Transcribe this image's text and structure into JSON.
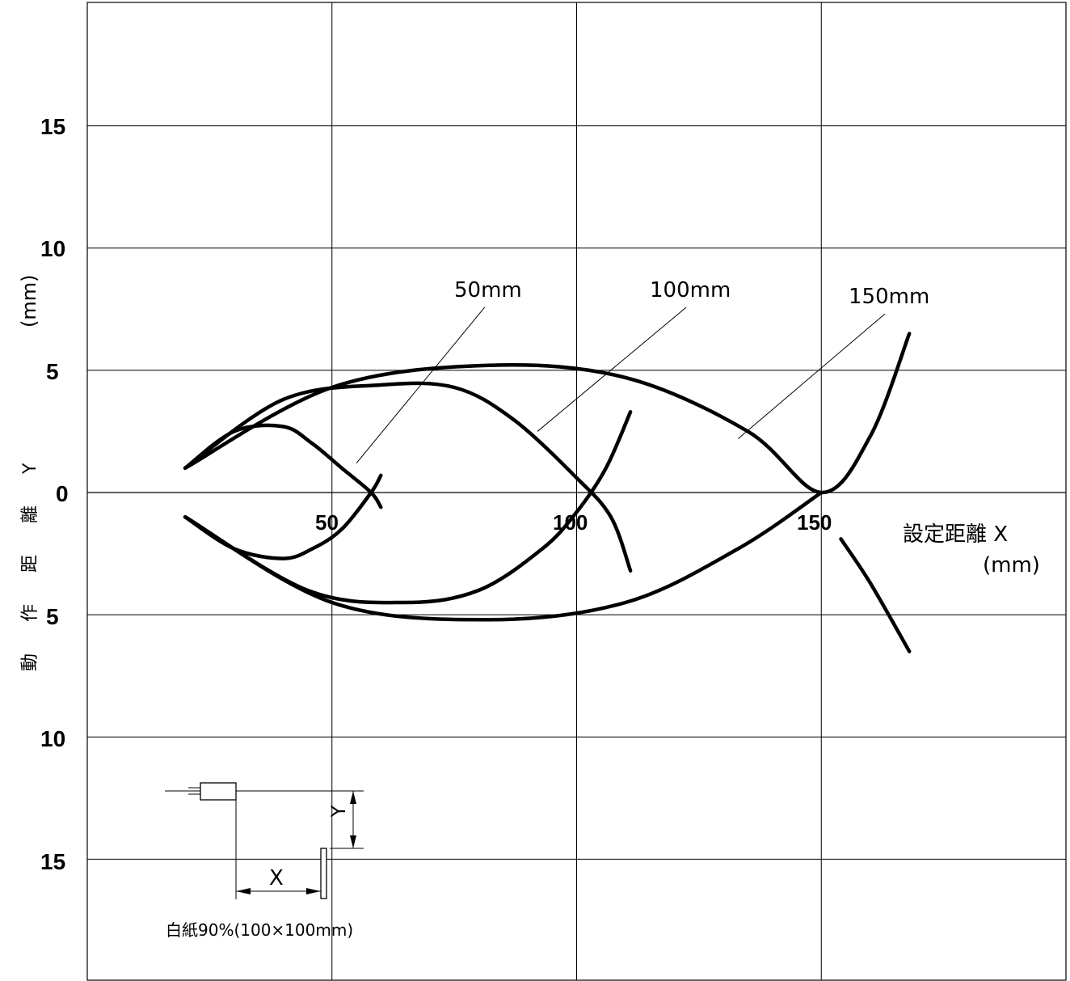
{
  "chart_data": {
    "type": "line",
    "x_ticks": [
      "50",
      "100",
      "150"
    ],
    "y_ticks_upper": [
      "15",
      "10",
      "5",
      "0"
    ],
    "y_ticks_lower": [
      "5",
      "10",
      "15"
    ],
    "xlabel": "設定距離 X",
    "xunit": "(mm)",
    "ylabel": "動 作 距 離 Y",
    "yunit": "(mm)",
    "xlim": [
      0,
      200
    ],
    "ylim": [
      -20,
      20
    ],
    "grid": true,
    "series": [
      {
        "name": "50mm",
        "upper": [
          [
            20,
            1.0
          ],
          [
            30,
            2.5
          ],
          [
            40,
            2.7
          ],
          [
            46,
            2.0
          ],
          [
            52,
            1.0
          ],
          [
            58,
            0.0
          ],
          [
            60,
            -0.6
          ]
        ],
        "lower": [
          [
            20,
            -1.0
          ],
          [
            30,
            -2.3
          ],
          [
            40,
            -2.7
          ],
          [
            46,
            -2.3
          ],
          [
            52,
            -1.5
          ],
          [
            58,
            0.0
          ],
          [
            60,
            0.7
          ]
        ]
      },
      {
        "name": "100mm",
        "upper": [
          [
            20,
            1.0
          ],
          [
            40,
            3.8
          ],
          [
            60,
            4.4
          ],
          [
            75,
            4.3
          ],
          [
            87,
            3.0
          ],
          [
            100,
            0.6
          ],
          [
            107,
            -1.0
          ],
          [
            111,
            -3.2
          ]
        ],
        "lower": [
          [
            20,
            -1.0
          ],
          [
            45,
            -4.0
          ],
          [
            65,
            -4.5
          ],
          [
            80,
            -4.0
          ],
          [
            93,
            -2.3
          ],
          [
            100,
            -0.8
          ],
          [
            106,
            1.0
          ],
          [
            111,
            3.3
          ]
        ]
      },
      {
        "name": "150mm",
        "upper": [
          [
            20,
            1.0
          ],
          [
            50,
            4.3
          ],
          [
            82,
            5.2
          ],
          [
            110,
            4.7
          ],
          [
            135,
            2.5
          ],
          [
            150,
            0.0
          ],
          [
            160,
            2.3
          ],
          [
            168,
            6.5
          ]
        ],
        "lower": [
          [
            20,
            -1.0
          ],
          [
            50,
            -4.5
          ],
          [
            82,
            -5.2
          ],
          [
            110,
            -4.5
          ],
          [
            133,
            -2.3
          ],
          [
            150,
            0.0
          ]
        ],
        "tail": [
          [
            154,
            -1.9
          ],
          [
            160,
            -3.7
          ],
          [
            168,
            -6.5
          ]
        ]
      }
    ]
  },
  "inset": {
    "x_label": "X",
    "y_label": "Y",
    "caption": "白紙90%(100×100mm)"
  }
}
